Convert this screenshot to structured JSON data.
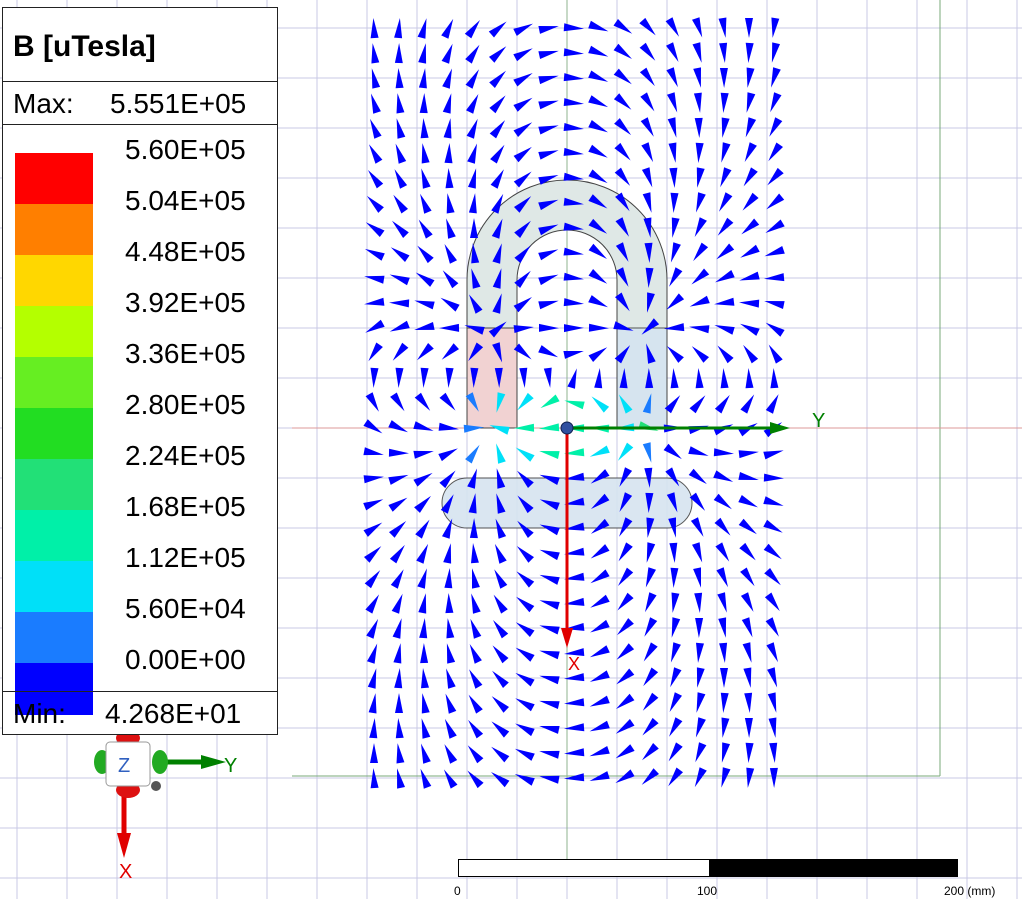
{
  "legend": {
    "title": "B [uTesla]",
    "max_label": "Max:",
    "max_value": "5.551E+05",
    "min_label": "Min:",
    "min_value": "4.268E+01",
    "ticks": [
      "5.60E+05",
      "5.04E+05",
      "4.48E+05",
      "3.92E+05",
      "3.36E+05",
      "2.80E+05",
      "2.24E+05",
      "1.68E+05",
      "1.12E+05",
      "5.60E+04",
      "0.00E+00"
    ],
    "colors": [
      "#ff0000",
      "#ff7f00",
      "#ffd700",
      "#b4ff00",
      "#66ee22",
      "#22dd22",
      "#22e077",
      "#00f0a8",
      "#00e0f8",
      "#1a7cff",
      "#0000ff"
    ]
  },
  "axes": {
    "y_label": "Y",
    "x_label": "X",
    "z_label": "Z"
  },
  "scale_bar": {
    "labels": [
      "0",
      "100",
      "200 (mm)"
    ]
  },
  "colors": {
    "arrow": "#0000ff",
    "grid": "#c8c8e6",
    "axis_y": "#008000",
    "axis_x": "#e00000",
    "geometry_fill": "#dfe8e6",
    "magnet_fill": "#f1d2d2",
    "pole_fill": "#d6e4f0"
  }
}
